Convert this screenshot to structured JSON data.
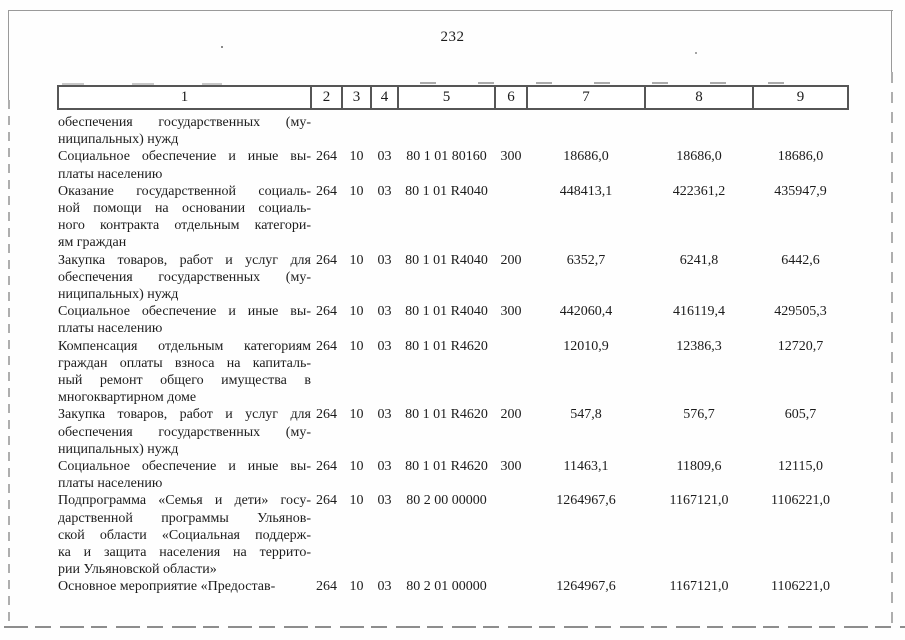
{
  "page": {
    "number": "232"
  },
  "scan": {
    "ink_color": "#1c1c1c",
    "frame_color": "#9a9a9a"
  },
  "table": {
    "header": [
      "1",
      "2",
      "3",
      "4",
      "5",
      "6",
      "7",
      "8",
      "9"
    ],
    "column_keys": [
      "c2",
      "c3",
      "c4",
      "c5",
      "c6",
      "c7",
      "c8",
      "c9"
    ],
    "rows": [
      {
        "name": "обеспечения государственных (му-\nниципальных) нужд",
        "c2": "",
        "c3": "",
        "c4": "",
        "c5": "",
        "c6": "",
        "c7": "",
        "c8": "",
        "c9": ""
      },
      {
        "name": "Социальное обеспечение и иные вы-\nплаты населению",
        "c2": "264",
        "c3": "10",
        "c4": "03",
        "c5": "80 1 01 80160",
        "c6": "300",
        "c7": "18686,0",
        "c8": "18686,0",
        "c9": "18686,0"
      },
      {
        "name": "Оказание государственной социаль-\nной помощи на основании социаль-\nного контракта отдельным категори-\nям граждан",
        "c2": "264",
        "c3": "10",
        "c4": "03",
        "c5": "80 1 01 R4040",
        "c6": "",
        "c7": "448413,1",
        "c8": "422361,2",
        "c9": "435947,9"
      },
      {
        "name": "Закупка товаров, работ и услуг для\nобеспечения государственных (му-\nниципальных) нужд",
        "c2": "264",
        "c3": "10",
        "c4": "03",
        "c5": "80 1 01 R4040",
        "c6": "200",
        "c7": "6352,7",
        "c8": "6241,8",
        "c9": "6442,6"
      },
      {
        "name": "Социальное обеспечение и иные вы-\nплаты населению",
        "c2": "264",
        "c3": "10",
        "c4": "03",
        "c5": "80 1 01 R4040",
        "c6": "300",
        "c7": "442060,4",
        "c8": "416119,4",
        "c9": "429505,3"
      },
      {
        "name": "Компенсация отдельным категориям\nграждан оплаты взноса на капиталь-\nный ремонт общего имущества в\nмногоквартирном доме",
        "c2": "264",
        "c3": "10",
        "c4": "03",
        "c5": "80 1 01 R4620",
        "c6": "",
        "c7": "12010,9",
        "c8": "12386,3",
        "c9": "12720,7"
      },
      {
        "name": "Закупка товаров, работ и услуг для\nобеспечения государственных (му-\nниципальных) нужд",
        "c2": "264",
        "c3": "10",
        "c4": "03",
        "c5": "80 1 01 R4620",
        "c6": "200",
        "c7": "547,8",
        "c8": "576,7",
        "c9": "605,7"
      },
      {
        "name": "Социальное обеспечение и иные вы-\nплаты населению",
        "c2": "264",
        "c3": "10",
        "c4": "03",
        "c5": "80 1 01 R4620",
        "c6": "300",
        "c7": "11463,1",
        "c8": "11809,6",
        "c9": "12115,0"
      },
      {
        "name": "Подпрограмма «Семья и дети» госу-\nдарственной программы Ульянов-\nской области «Социальная поддерж-\nка и защита населения на террито-\nрии Ульяновской области»",
        "c2": "264",
        "c3": "10",
        "c4": "03",
        "c5": "80 2 00 00000",
        "c6": "",
        "c7": "1264967,6",
        "c8": "1167121,0",
        "c9": "1106221,0"
      },
      {
        "name": "Основное мероприятие «Предостав-",
        "c2": "264",
        "c3": "10",
        "c4": "03",
        "c5": "80 2 01 00000",
        "c6": "",
        "c7": "1264967,6",
        "c8": "1167121,0",
        "c9": "1106221,0"
      }
    ]
  }
}
